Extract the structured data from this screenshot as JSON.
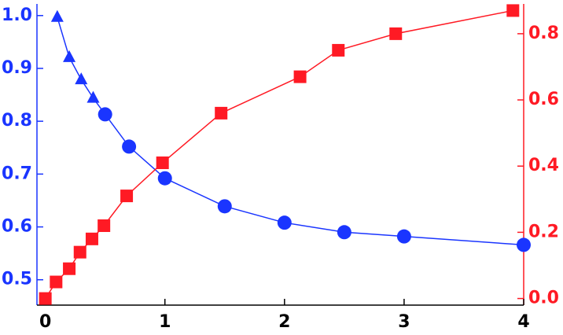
{
  "chart_data": {
    "type": "line",
    "x_axis": {
      "xlim": [
        -0.07,
        4
      ],
      "xticks": [
        0,
        1,
        2,
        3,
        4
      ]
    },
    "ylim": [
      0.452,
      1.022
    ],
    "yticks": [
      0.5,
      0.6,
      0.7,
      0.8,
      0.9,
      {
        "value": 1,
        "label": "1.0"
      }
    ],
    "y2lim": [
      -0.02,
      0.89
    ],
    "y2ticks": [
      {
        "value": 0,
        "label": "0.0"
      },
      0.2,
      0.4,
      0.6,
      0.8
    ],
    "grid": false,
    "left_axis_color": "#1a35ff",
    "right_axis_color": "#ff1a24",
    "series": [
      {
        "color": "#1a35ff",
        "axis": "y",
        "x": [
          0.1,
          0.2,
          0.3,
          0.4,
          0.5,
          0.7,
          1.0,
          1.5,
          2.0,
          2.5,
          3.0,
          4.0
        ],
        "values": [
          0.997,
          0.921,
          0.879,
          0.844,
          0.813,
          0.752,
          0.692,
          0.639,
          0.608,
          0.59,
          0.582,
          0.566
        ],
        "markers": [
          "triangle",
          "triangle",
          "triangle",
          "triangle",
          "circle",
          "circle",
          "circle",
          "circle",
          "circle",
          "circle",
          "circle",
          "circle"
        ]
      },
      {
        "color": "#ff1a24",
        "axis": "y2",
        "x": [
          0,
          0.09,
          0.2,
          0.29,
          0.39,
          0.49,
          0.68,
          0.98,
          1.47,
          2.13,
          2.45,
          2.93,
          3.91
        ],
        "values": [
          0,
          0.05,
          0.09,
          0.14,
          0.18,
          0.22,
          0.31,
          0.41,
          0.56,
          0.67,
          0.75,
          0.8,
          0.87
        ],
        "markers": [
          "square",
          "square",
          "square",
          "square",
          "square",
          "square",
          "square",
          "square",
          "square",
          "square",
          "square",
          "square",
          "square"
        ]
      }
    ]
  }
}
